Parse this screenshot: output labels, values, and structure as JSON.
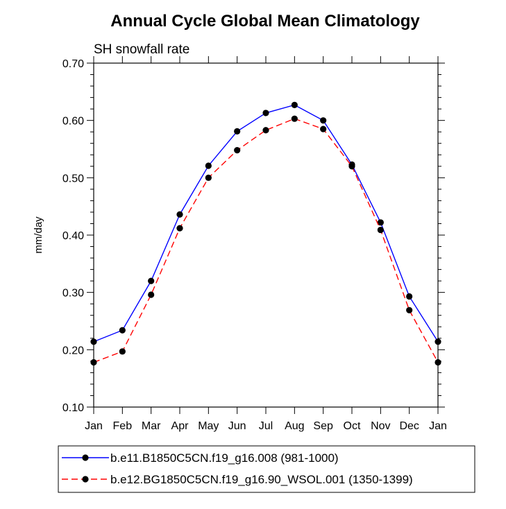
{
  "chart_data": {
    "type": "line",
    "title": "Annual Cycle Global Mean Climatology",
    "subtitle": "SH snowfall rate",
    "xlabel": "",
    "ylabel": "mm/day",
    "categories": [
      "Jan",
      "Feb",
      "Mar",
      "Apr",
      "May",
      "Jun",
      "Jul",
      "Aug",
      "Sep",
      "Oct",
      "Nov",
      "Dec",
      "Jan"
    ],
    "ylim": [
      0.1,
      0.7
    ],
    "yticks": [
      "0.10",
      "0.20",
      "0.30",
      "0.40",
      "0.50",
      "0.60",
      "0.70"
    ],
    "grid": false,
    "legend_position": "bottom",
    "series": [
      {
        "name": "b.e11.B1850C5CN.f19_g16.008 (981-1000)",
        "color": "#0000ff",
        "line_style": "solid",
        "marker": "filled-circle",
        "values": [
          0.214,
          0.234,
          0.32,
          0.436,
          0.521,
          0.581,
          0.613,
          0.627,
          0.6,
          0.523,
          0.422,
          0.293,
          0.214
        ]
      },
      {
        "name": "b.e12.BG1850C5CN.f19_g16.90_WSOL.001 (1350-1399)",
        "color": "#ff0000",
        "line_style": "dashed",
        "marker": "filled-circle",
        "values": [
          0.178,
          0.197,
          0.296,
          0.412,
          0.5,
          0.548,
          0.583,
          0.603,
          0.585,
          0.52,
          0.409,
          0.269,
          0.178
        ]
      }
    ]
  }
}
